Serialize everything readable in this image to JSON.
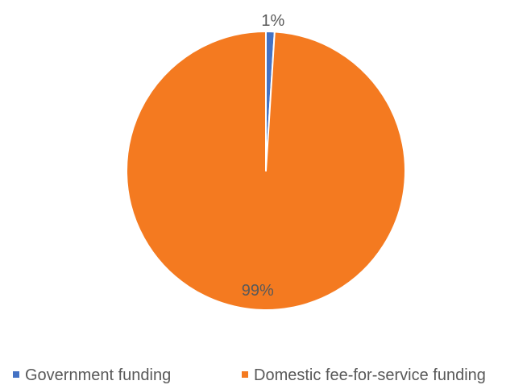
{
  "chart_data": {
    "type": "pie",
    "title": "",
    "categories": [
      "Government funding",
      "Domestic fee-for-service funding"
    ],
    "values": [
      1,
      99
    ],
    "data_labels": [
      "1%",
      "99%"
    ],
    "colors": [
      "#4472C4",
      "#F47A20"
    ],
    "legend": "bottom"
  }
}
